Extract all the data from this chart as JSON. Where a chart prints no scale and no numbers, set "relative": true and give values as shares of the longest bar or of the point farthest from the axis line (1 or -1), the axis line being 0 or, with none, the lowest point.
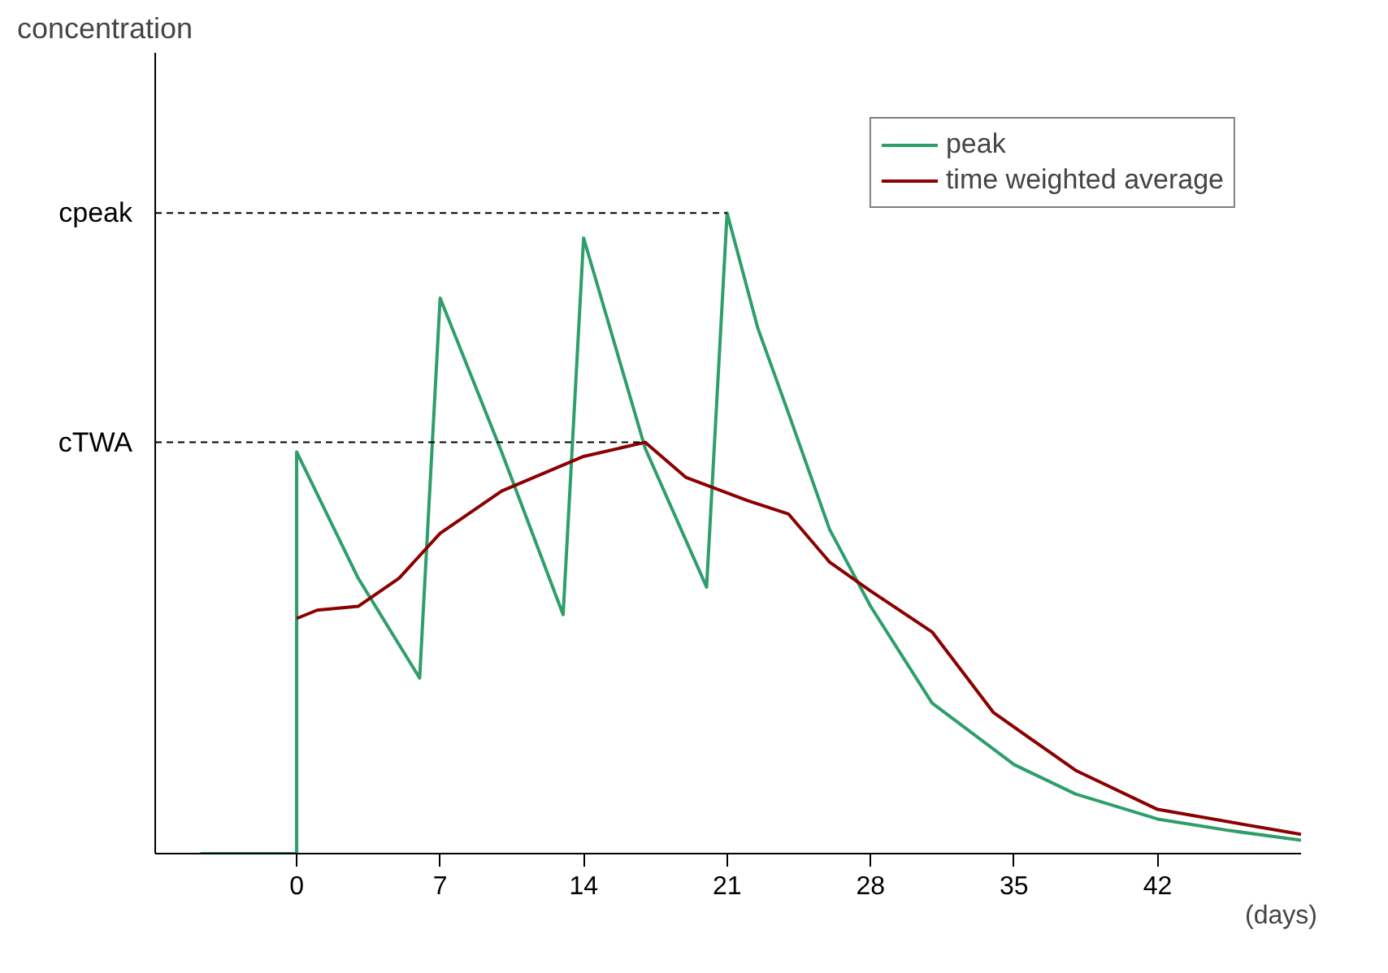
{
  "chart_data": {
    "type": "line",
    "relative": true,
    "annotations": [
      "concentration"
    ],
    "xlabel": "(days)",
    "xlim": [
      -6.9,
      49
    ],
    "xticks": [
      0,
      7,
      14,
      21,
      28,
      35,
      42
    ],
    "legend": "top right",
    "grid": false,
    "marker": "none",
    "line_style": "solid",
    "series": [
      {
        "name": "peak",
        "color": "#2e9e6b",
        "x": [
          -4.7,
          0,
          0,
          3,
          6,
          7,
          10,
          13,
          14,
          17,
          20,
          21,
          22.5,
          24,
          26,
          28,
          31,
          35,
          38,
          42,
          45.5,
          49
        ],
        "values": [
          0,
          0,
          0.627,
          0.43,
          0.274,
          0.867,
          0.627,
          0.373,
          0.961,
          0.633,
          0.416,
          1.0,
          0.82,
          0.687,
          0.506,
          0.386,
          0.235,
          0.139,
          0.093,
          0.054,
          0.036,
          0.021
        ]
      },
      {
        "name": "time weighted average",
        "color": "#8b0000",
        "x": [
          0,
          1,
          3,
          5,
          7,
          10,
          14,
          17,
          19,
          22,
          24,
          26,
          28,
          31,
          34,
          38,
          42,
          49
        ],
        "values": [
          0.367,
          0.38,
          0.386,
          0.43,
          0.5,
          0.566,
          0.62,
          0.642,
          0.587,
          0.551,
          0.53,
          0.455,
          0.41,
          0.346,
          0.22,
          0.13,
          0.069,
          0.03
        ]
      }
    ],
    "ref_lines": [
      {
        "axis": "y",
        "value": 1.0,
        "label": "cpeak",
        "line_style": "dashed",
        "color": "#000000"
      },
      {
        "axis": "y",
        "value": 0.642,
        "label": "cTWA",
        "line_style": "dashed",
        "color": "#000000"
      }
    ]
  }
}
